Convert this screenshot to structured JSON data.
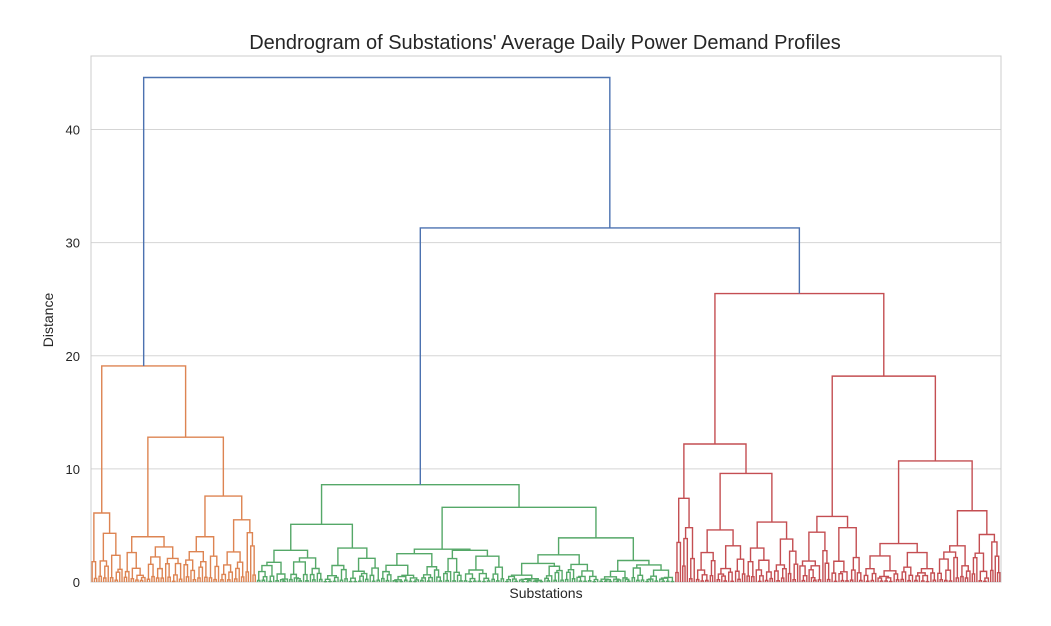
{
  "chart_data": {
    "type": "dendrogram",
    "title": "Dendrogram of Substations' Average Daily Power Demand Profiles",
    "xlabel": "Substations",
    "ylabel": "Distance",
    "ylim": [
      0,
      46.5
    ],
    "yticks": [
      0,
      10,
      20,
      30,
      40
    ],
    "grid": {
      "y": true,
      "x": false
    },
    "leaf_count": 396,
    "colors": {
      "cluster_1": "#dd8452",
      "cluster_2": "#55a868",
      "cluster_3": "#c44e52",
      "above_threshold": "#4c72b0",
      "grid": "#d5d5d5",
      "frame": "#cccccc"
    },
    "top_links": [
      {
        "id": "root",
        "height": 44.6,
        "left": "orange_cluster",
        "right": "green_red_merge",
        "color": "above_threshold"
      },
      {
        "id": "green_red_merge",
        "height": 31.3,
        "left": "green_cluster",
        "right": "red_cluster",
        "color": "above_threshold"
      }
    ],
    "clusters": [
      {
        "name": "orange_cluster",
        "color": "cluster_1",
        "leaf_range": [
          0,
          72
        ],
        "height": 19.1,
        "main_splits": [
          {
            "height": 19.1,
            "left": "left_outlier_group",
            "right": "orange_subcluster"
          },
          {
            "height": 12.8,
            "left": "left_orange_group",
            "right": "right_orange_group"
          },
          {
            "height": 7.6,
            "left": "orange_right_a",
            "right": "orange_right_b"
          }
        ],
        "small_heights": [
          6.1,
          5.5,
          4.3,
          4.0,
          3.1,
          2.8,
          2.4,
          2.0,
          1.6,
          1.2,
          0.8
        ]
      },
      {
        "name": "green_cluster",
        "color": "cluster_2",
        "leaf_range": [
          72,
          254
        ],
        "height": 8.6,
        "main_splits": [
          {
            "height": 8.6,
            "left": "green_left_group",
            "right": "green_right_group"
          },
          {
            "height": 6.6,
            "left": "green_mid_group",
            "right": "green_far_group"
          },
          {
            "height": 5.1,
            "left": "green_sub_a",
            "right": "green_sub_b"
          },
          {
            "height": 3.9,
            "left": "green_far_a",
            "right": "green_far_b"
          }
        ],
        "small_heights": [
          3.1,
          2.8,
          2.4,
          2.1,
          1.9,
          1.6,
          1.2,
          0.9,
          0.6
        ]
      },
      {
        "name": "red_cluster",
        "color": "cluster_3",
        "leaf_range": [
          254,
          396
        ],
        "height": 25.5,
        "main_splits": [
          {
            "height": 25.5,
            "left": "red_left_group",
            "right": "red_right_group"
          },
          {
            "height": 18.2,
            "left": "red_mid_group",
            "right": "red_far_group"
          },
          {
            "height": 12.2,
            "left": "red_left_sub",
            "right": "red_left_main"
          },
          {
            "height": 10.7,
            "left": "red_far_a",
            "right": "red_far_b"
          },
          {
            "height": 9.6,
            "left": "red_lm_a",
            "right": "red_lm_b"
          }
        ],
        "small_heights": [
          7.4,
          6.3,
          5.8,
          5.3,
          4.8,
          4.2,
          3.4,
          2.7,
          2.2,
          1.7,
          1.2,
          0.8
        ]
      }
    ]
  }
}
